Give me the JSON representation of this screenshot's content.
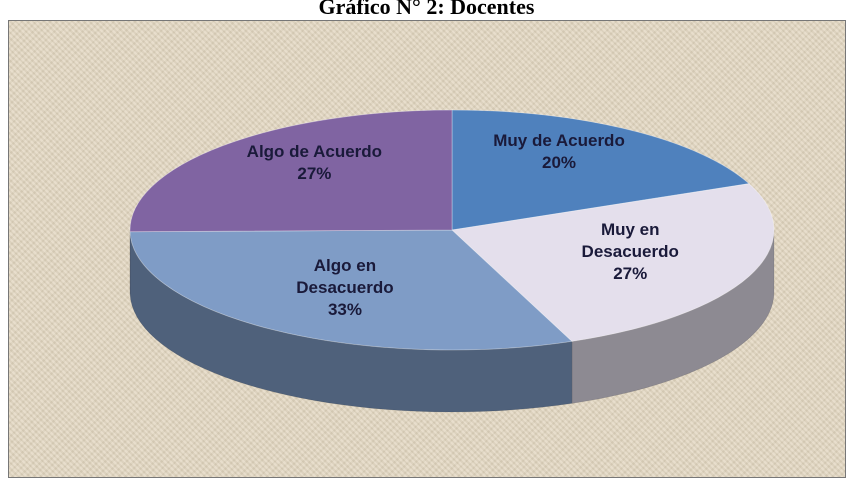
{
  "chart_data": {
    "type": "pie",
    "title": "Gráfico N° 2: Docentes",
    "categories": [
      "Muy de Acuerdo",
      "Muy en Desacuerdo",
      "Algo en Desacuerdo",
      "Algo de Acuerdo"
    ],
    "values": [
      20,
      27,
      33,
      27
    ],
    "value_labels": [
      "20%",
      "27%",
      "33%",
      "27%"
    ],
    "colors": [
      "#4f81bd",
      "#e4dfec",
      "#7f9cc6",
      "#8064a2"
    ]
  }
}
